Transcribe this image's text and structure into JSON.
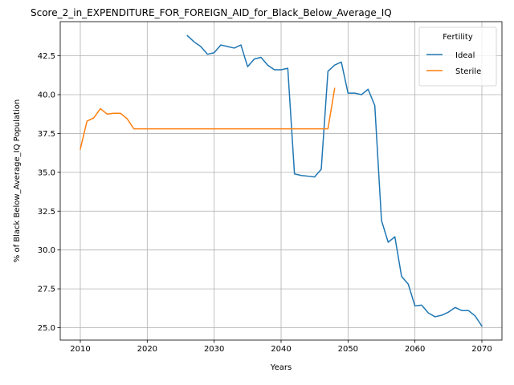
{
  "chart_data": {
    "type": "line",
    "title": "Score_2_in_EXPENDITURE_FOR_FOREIGN_AID_for_Black_Below_Average_IQ",
    "xlabel": "Years",
    "ylabel": "% of Black Below_Average_IQ Population",
    "xlim": [
      2007,
      2073
    ],
    "ylim": [
      24.2,
      44.7
    ],
    "x_ticks": [
      2010,
      2020,
      2030,
      2040,
      2050,
      2060,
      2070
    ],
    "y_ticks": [
      25.0,
      27.5,
      30.0,
      32.5,
      35.0,
      37.5,
      40.0,
      42.5
    ],
    "x_tick_labels": [
      "2010",
      "2020",
      "2030",
      "2040",
      "2050",
      "2060",
      "2070"
    ],
    "y_tick_labels": [
      "25.0",
      "27.5",
      "30.0",
      "32.5",
      "35.0",
      "37.5",
      "40.0",
      "42.5"
    ],
    "grid": true,
    "legend": {
      "title": "Fertility",
      "placement": "top-right"
    },
    "series": [
      {
        "name": "Ideal",
        "color": "#1f77b4",
        "x": [
          2026,
          2027,
          2028,
          2029,
          2030,
          2031,
          2032,
          2033,
          2034,
          2035,
          2036,
          2037,
          2038,
          2039,
          2040,
          2041,
          2042,
          2043,
          2044,
          2045,
          2046,
          2047,
          2048,
          2049,
          2050,
          2051,
          2052,
          2053,
          2054,
          2055,
          2056,
          2057,
          2058,
          2059,
          2060,
          2061,
          2062,
          2063,
          2064,
          2065,
          2066,
          2067,
          2068,
          2069,
          2070
        ],
        "y": [
          43.8,
          43.4,
          43.1,
          42.6,
          42.7,
          43.2,
          43.1,
          43.0,
          43.2,
          41.8,
          42.3,
          42.4,
          41.9,
          41.6,
          41.6,
          41.7,
          34.9,
          34.8,
          34.75,
          34.7,
          35.2,
          41.5,
          41.9,
          42.1,
          40.1,
          40.1,
          40.0,
          40.35,
          39.3,
          31.9,
          30.5,
          30.85,
          28.3,
          27.8,
          26.4,
          26.45,
          25.95,
          25.7,
          25.8,
          26.0,
          26.3,
          26.1,
          26.1,
          25.75,
          25.1
        ]
      },
      {
        "name": "Sterile",
        "color": "#ff7f0e",
        "x": [
          2010,
          2011,
          2012,
          2013,
          2014,
          2015,
          2016,
          2017,
          2018,
          2019,
          2020,
          2021,
          2022,
          2023,
          2024,
          2025,
          2026,
          2027,
          2028,
          2029,
          2030,
          2031,
          2032,
          2033,
          2034,
          2035,
          2036,
          2037,
          2038,
          2039,
          2040,
          2041,
          2042,
          2043,
          2044,
          2045,
          2046,
          2047,
          2048
        ],
        "y": [
          36.5,
          38.3,
          38.5,
          39.1,
          38.75,
          38.8,
          38.8,
          38.45,
          37.8,
          37.8,
          37.8,
          37.8,
          37.8,
          37.8,
          37.8,
          37.8,
          37.8,
          37.8,
          37.8,
          37.8,
          37.8,
          37.8,
          37.8,
          37.8,
          37.8,
          37.8,
          37.8,
          37.8,
          37.8,
          37.8,
          37.8,
          37.8,
          37.8,
          37.8,
          37.8,
          37.8,
          37.8,
          37.8,
          40.4
        ]
      }
    ]
  }
}
